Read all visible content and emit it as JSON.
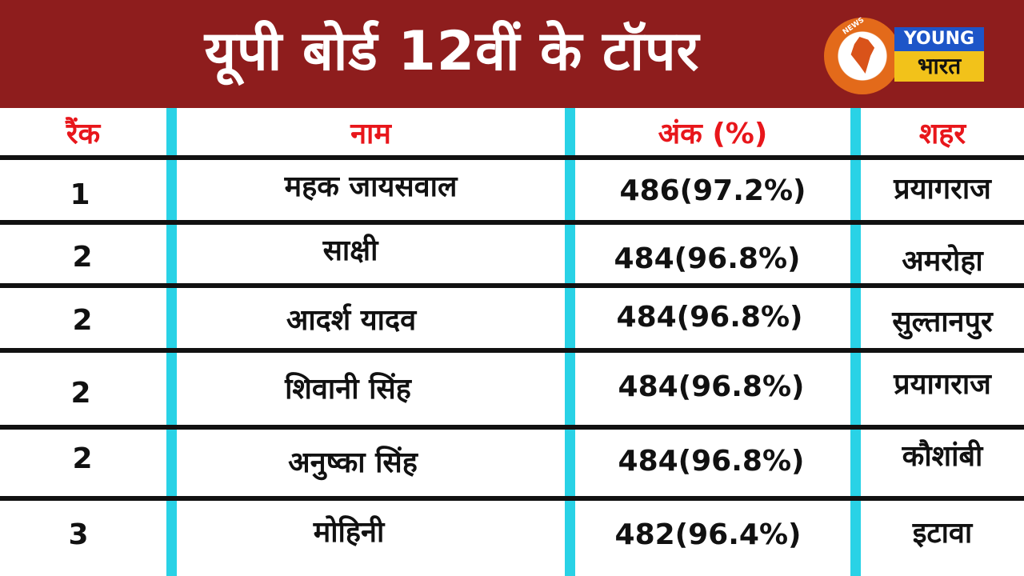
{
  "header": {
    "title": "यूपी बोर्ड 12वीं  के टॉपर",
    "logo": {
      "ring_text": "NEWS NEWS NEWS NEWS",
      "young": "YOUNG",
      "bharat": "भारत",
      "colors": {
        "ring": "#e36a1a",
        "young_bg": "#1d55c8",
        "bharat_bg": "#f2c21a"
      }
    },
    "background": "#8e1d1d"
  },
  "table": {
    "headers": [
      "रैंक",
      "नाम",
      "अंक (%)",
      "शहर"
    ],
    "rows": [
      {
        "rank": "1",
        "name": "महक जायसवाल",
        "marks": "486(97.2%)",
        "city": "प्रयागराज"
      },
      {
        "rank": "2",
        "name": "साक्षी",
        "marks": "484(96.8%)",
        "city": "अमरोहा"
      },
      {
        "rank": "2",
        "name": "आदर्श यादव",
        "marks": "484(96.8%)",
        "city": "सुल्तानपुर"
      },
      {
        "rank": "2",
        "name": "शिवानी सिंह",
        "marks": "484(96.8%)",
        "city": "प्रयागराज"
      },
      {
        "rank": "2",
        "name": "अनुष्का सिंह",
        "marks": "484(96.8%)",
        "city": "कौशांबी"
      },
      {
        "rank": "3",
        "name": "मोहिनी",
        "marks": "482(96.4%)",
        "city": "इटावा"
      }
    ],
    "colors": {
      "header_text": "#e8161b",
      "divider": "#29d2e6",
      "row_line": "#111111"
    }
  }
}
